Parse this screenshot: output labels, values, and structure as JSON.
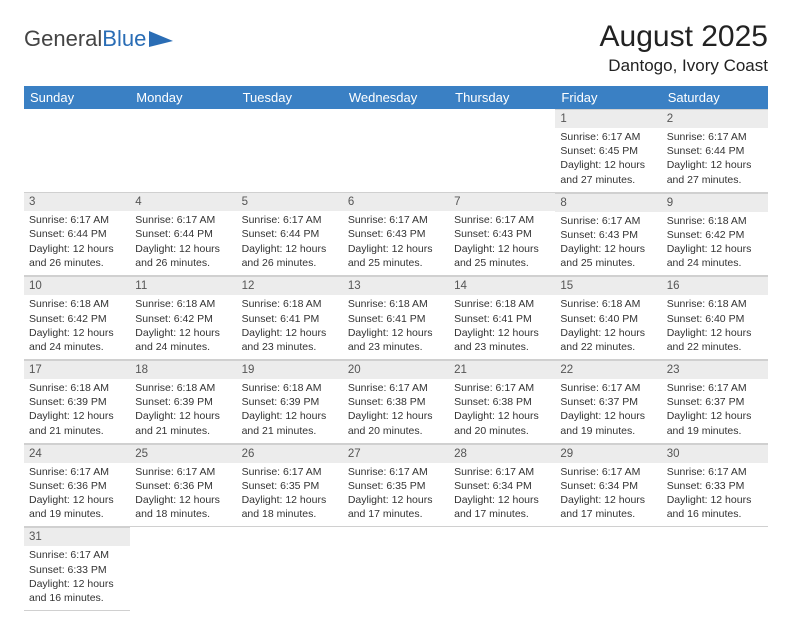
{
  "logo": {
    "text1": "General",
    "text2": "Blue"
  },
  "title": "August 2025",
  "location": "Dantogo, Ivory Coast",
  "colors": {
    "header_bg": "#3a80c4",
    "header_fg": "#ffffff",
    "daynum_bg": "#ececec",
    "border": "#d0d0d0"
  },
  "day_names": [
    "Sunday",
    "Monday",
    "Tuesday",
    "Wednesday",
    "Thursday",
    "Friday",
    "Saturday"
  ],
  "first_day_index": 5,
  "days_in_month": 31,
  "days": {
    "1": {
      "sunrise": "6:17 AM",
      "sunset": "6:45 PM",
      "daylight": "12 hours and 27 minutes."
    },
    "2": {
      "sunrise": "6:17 AM",
      "sunset": "6:44 PM",
      "daylight": "12 hours and 27 minutes."
    },
    "3": {
      "sunrise": "6:17 AM",
      "sunset": "6:44 PM",
      "daylight": "12 hours and 26 minutes."
    },
    "4": {
      "sunrise": "6:17 AM",
      "sunset": "6:44 PM",
      "daylight": "12 hours and 26 minutes."
    },
    "5": {
      "sunrise": "6:17 AM",
      "sunset": "6:44 PM",
      "daylight": "12 hours and 26 minutes."
    },
    "6": {
      "sunrise": "6:17 AM",
      "sunset": "6:43 PM",
      "daylight": "12 hours and 25 minutes."
    },
    "7": {
      "sunrise": "6:17 AM",
      "sunset": "6:43 PM",
      "daylight": "12 hours and 25 minutes."
    },
    "8": {
      "sunrise": "6:17 AM",
      "sunset": "6:43 PM",
      "daylight": "12 hours and 25 minutes."
    },
    "9": {
      "sunrise": "6:18 AM",
      "sunset": "6:42 PM",
      "daylight": "12 hours and 24 minutes."
    },
    "10": {
      "sunrise": "6:18 AM",
      "sunset": "6:42 PM",
      "daylight": "12 hours and 24 minutes."
    },
    "11": {
      "sunrise": "6:18 AM",
      "sunset": "6:42 PM",
      "daylight": "12 hours and 24 minutes."
    },
    "12": {
      "sunrise": "6:18 AM",
      "sunset": "6:41 PM",
      "daylight": "12 hours and 23 minutes."
    },
    "13": {
      "sunrise": "6:18 AM",
      "sunset": "6:41 PM",
      "daylight": "12 hours and 23 minutes."
    },
    "14": {
      "sunrise": "6:18 AM",
      "sunset": "6:41 PM",
      "daylight": "12 hours and 23 minutes."
    },
    "15": {
      "sunrise": "6:18 AM",
      "sunset": "6:40 PM",
      "daylight": "12 hours and 22 minutes."
    },
    "16": {
      "sunrise": "6:18 AM",
      "sunset": "6:40 PM",
      "daylight": "12 hours and 22 minutes."
    },
    "17": {
      "sunrise": "6:18 AM",
      "sunset": "6:39 PM",
      "daylight": "12 hours and 21 minutes."
    },
    "18": {
      "sunrise": "6:18 AM",
      "sunset": "6:39 PM",
      "daylight": "12 hours and 21 minutes."
    },
    "19": {
      "sunrise": "6:18 AM",
      "sunset": "6:39 PM",
      "daylight": "12 hours and 21 minutes."
    },
    "20": {
      "sunrise": "6:17 AM",
      "sunset": "6:38 PM",
      "daylight": "12 hours and 20 minutes."
    },
    "21": {
      "sunrise": "6:17 AM",
      "sunset": "6:38 PM",
      "daylight": "12 hours and 20 minutes."
    },
    "22": {
      "sunrise": "6:17 AM",
      "sunset": "6:37 PM",
      "daylight": "12 hours and 19 minutes."
    },
    "23": {
      "sunrise": "6:17 AM",
      "sunset": "6:37 PM",
      "daylight": "12 hours and 19 minutes."
    },
    "24": {
      "sunrise": "6:17 AM",
      "sunset": "6:36 PM",
      "daylight": "12 hours and 19 minutes."
    },
    "25": {
      "sunrise": "6:17 AM",
      "sunset": "6:36 PM",
      "daylight": "12 hours and 18 minutes."
    },
    "26": {
      "sunrise": "6:17 AM",
      "sunset": "6:35 PM",
      "daylight": "12 hours and 18 minutes."
    },
    "27": {
      "sunrise": "6:17 AM",
      "sunset": "6:35 PM",
      "daylight": "12 hours and 17 minutes."
    },
    "28": {
      "sunrise": "6:17 AM",
      "sunset": "6:34 PM",
      "daylight": "12 hours and 17 minutes."
    },
    "29": {
      "sunrise": "6:17 AM",
      "sunset": "6:34 PM",
      "daylight": "12 hours and 17 minutes."
    },
    "30": {
      "sunrise": "6:17 AM",
      "sunset": "6:33 PM",
      "daylight": "12 hours and 16 minutes."
    },
    "31": {
      "sunrise": "6:17 AM",
      "sunset": "6:33 PM",
      "daylight": "12 hours and 16 minutes."
    }
  },
  "labels": {
    "sunrise": "Sunrise: ",
    "sunset": "Sunset: ",
    "daylight": "Daylight: "
  }
}
